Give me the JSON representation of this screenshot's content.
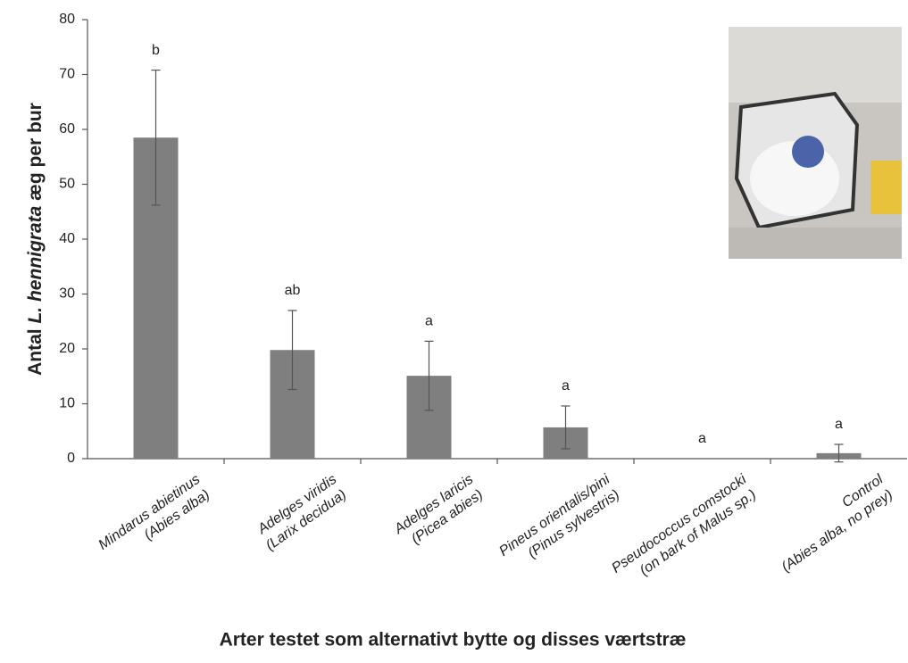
{
  "chart_data": {
    "type": "bar",
    "categories": [
      [
        "Mindarus abietinus",
        "(Abies alba)"
      ],
      [
        "Adelges viridis",
        "(Larix decidua)"
      ],
      [
        "Adelges laricis",
        "(Picea abies)"
      ],
      [
        "Pineus orientalis/pini",
        "(Pinus sylvestris)"
      ],
      [
        "Pseudococcus comstocki",
        "(on bark of Malus sp.)"
      ],
      [
        "Control",
        "(Abies alba, no prey)"
      ]
    ],
    "values": [
      58.5,
      19.8,
      15.1,
      5.7,
      0,
      1.0
    ],
    "errors": [
      12.3,
      7.2,
      6.3,
      3.9,
      null,
      1.6
    ],
    "annotations": [
      "b",
      "ab",
      "a",
      "a",
      "a",
      "a"
    ],
    "color": "#7f7f7f",
    "ylim": [
      0,
      80
    ],
    "yticks": [
      0,
      10,
      20,
      30,
      40,
      50,
      60,
      70,
      80
    ],
    "ylabel": [
      "Antal ",
      "L. hennigrata",
      " æg per bur"
    ],
    "xlabel": "Arter testet som alternativt bytte og disses værtstræ"
  }
}
